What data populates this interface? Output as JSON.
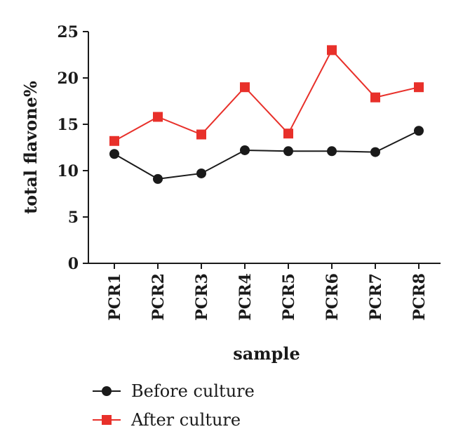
{
  "chart_data": {
    "type": "line",
    "xlabel": "sample",
    "ylabel": "total flavone%",
    "categories": [
      "PCR1",
      "PCR2",
      "PCR3",
      "PCR4",
      "PCR5",
      "PCR6",
      "PCR7",
      "PCR8"
    ],
    "ylim": [
      0,
      25
    ],
    "yticks": [
      0,
      5,
      10,
      15,
      20,
      25
    ],
    "grid": false,
    "legend_position": "bottom",
    "series": [
      {
        "name": "Before culture",
        "color": "#1a1a1a",
        "marker": "circle",
        "values": [
          11.8,
          9.1,
          9.7,
          12.2,
          12.1,
          12.1,
          12.0,
          14.3
        ]
      },
      {
        "name": "After culture",
        "color": "#e8302a",
        "marker": "square",
        "values": [
          13.2,
          15.8,
          13.9,
          19.0,
          14.0,
          23.0,
          17.9,
          19.0
        ]
      }
    ]
  }
}
